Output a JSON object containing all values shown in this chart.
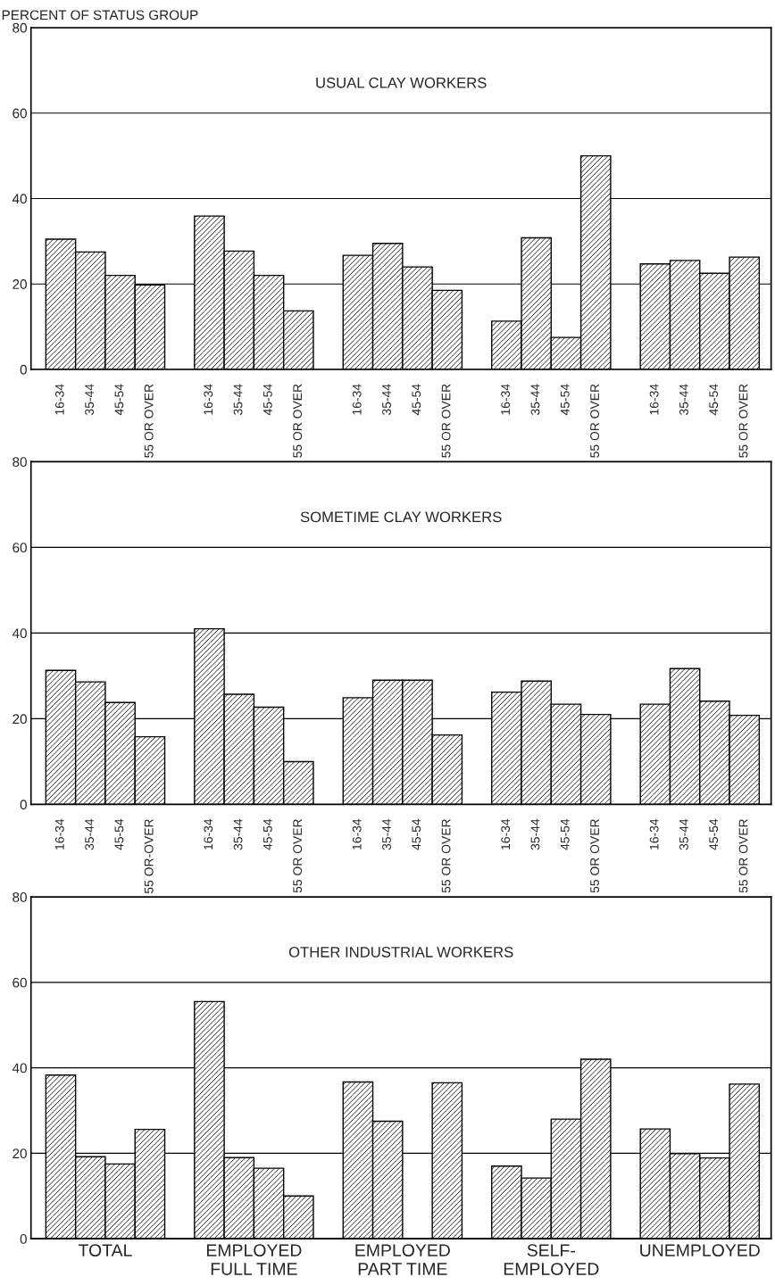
{
  "chart_data": [
    {
      "type": "bar",
      "title": "USUAL CLAY WORKERS",
      "ylabel": "PERCENT OF STATUS GROUP",
      "categories": [
        "16-34",
        "35-44",
        "45-54",
        "55 OR OVER",
        null,
        "16-34",
        "35-44",
        "45-54",
        "55 OR OVER",
        null,
        "16-34",
        "35-44",
        "45-54",
        "55 OR OVER",
        null,
        "16-34",
        "35-44",
        "45-54",
        "55 OR OVER",
        null,
        "16-34",
        "35-44",
        "45-54",
        "55 OR OVER"
      ],
      "values": [
        30.5,
        27.5,
        22,
        19.8,
        null,
        35.9,
        27.7,
        22,
        13.7,
        null,
        26.7,
        29.5,
        24,
        18.5,
        null,
        11.3,
        30.8,
        7.5,
        50,
        null,
        24.7,
        25.5,
        22.5,
        26.3
      ],
      "color": "#000000",
      "ylim": [
        0,
        80
      ],
      "yticks": [
        0,
        20,
        40,
        60,
        80
      ],
      "grid": "y"
    },
    {
      "type": "bar",
      "title": "SOMETIME CLAY WORKERS",
      "categories": [
        "16-34",
        "35-44",
        "45-54",
        "55 OR-OVER",
        null,
        "16-34",
        "35-44",
        "45-54",
        "55 OR OVER",
        null,
        "16-34",
        "35-44",
        "45-54",
        "55 OR OVER",
        null,
        "16-34",
        "35-44",
        "45-54",
        "55 OR OVER",
        null,
        "16-34",
        "35-44",
        "45-54",
        "55 OR OVER"
      ],
      "values": [
        31.3,
        28.6,
        23.8,
        15.8,
        null,
        41,
        25.7,
        22.7,
        10,
        null,
        24.9,
        29,
        29,
        16.2,
        null,
        26.2,
        28.8,
        23.4,
        21,
        null,
        23.4,
        31.7,
        24.1,
        20.8
      ],
      "color": "#000000",
      "ylim": [
        0,
        80
      ],
      "yticks": [
        0,
        20,
        40,
        60,
        80
      ],
      "grid": "y"
    },
    {
      "type": "bar",
      "title": "OTHER INDUSTRIAL WORKERS",
      "categories": [
        "TOTAL",
        "EMPLOYED\nFULL TIME",
        "EMPLOYED\nPART TIME",
        "SELF-\nEMPLOYED",
        "UNEMPLOYED"
      ],
      "series": [
        {
          "color": "#000000",
          "values": [
            38.3,
            55.5,
            36.7,
            17,
            25.7
          ]
        },
        {
          "color": "#000000",
          "values": [
            19.2,
            19,
            27.5,
            14.2,
            19.9
          ]
        },
        {
          "color": "#000000",
          "values": [
            17.5,
            16.5,
            null,
            28,
            18.9
          ]
        },
        {
          "color": "#000000",
          "values": [
            25.6,
            10,
            36.5,
            42,
            36.2
          ]
        }
      ],
      "ylim": [
        0,
        80
      ],
      "yticks": [
        0,
        20,
        40,
        60,
        80
      ],
      "grid": "y"
    }
  ]
}
